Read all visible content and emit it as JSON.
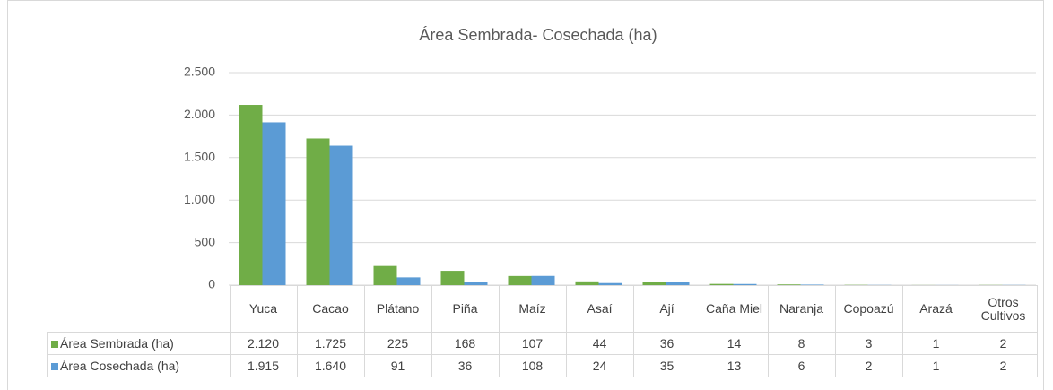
{
  "chart_data": {
    "type": "bar",
    "title": "Área Sembrada- Cosechada (ha)",
    "categories": [
      "Yuca",
      "Cacao",
      "Plátano",
      "Piña",
      "Maíz",
      "Asaí",
      "Ají",
      "Caña Miel",
      "Naranja",
      "Copoazú",
      "Arazá",
      "Otros Cultivos"
    ],
    "series": [
      {
        "name": "Área Sembrada (ha)",
        "color": "#70ad47",
        "values": [
          2120,
          1725,
          225,
          168,
          107,
          44,
          36,
          14,
          8,
          3,
          1,
          2
        ],
        "value_labels": [
          "2.120",
          "1.725",
          "225",
          "168",
          "107",
          "44",
          "36",
          "14",
          "8",
          "3",
          "1",
          "2"
        ]
      },
      {
        "name": "Área Cosechada (ha)",
        "color": "#5b9bd5",
        "values": [
          1915,
          1640,
          91,
          36,
          108,
          24,
          35,
          13,
          6,
          2,
          1,
          2
        ],
        "value_labels": [
          "1.915",
          "1.640",
          "91",
          "36",
          "108",
          "24",
          "35",
          "13",
          "6",
          "2",
          "1",
          "2"
        ]
      }
    ],
    "ylim": [
      0,
      2500
    ],
    "yticks": [
      0,
      500,
      {
        "value": 1000,
        "label": "1.000"
      },
      {
        "value": 1500,
        "label": "1.500"
      },
      {
        "value": 2000,
        "label": "2.000"
      },
      {
        "value": 2500,
        "label": "2.500"
      }
    ],
    "grid": true
  }
}
